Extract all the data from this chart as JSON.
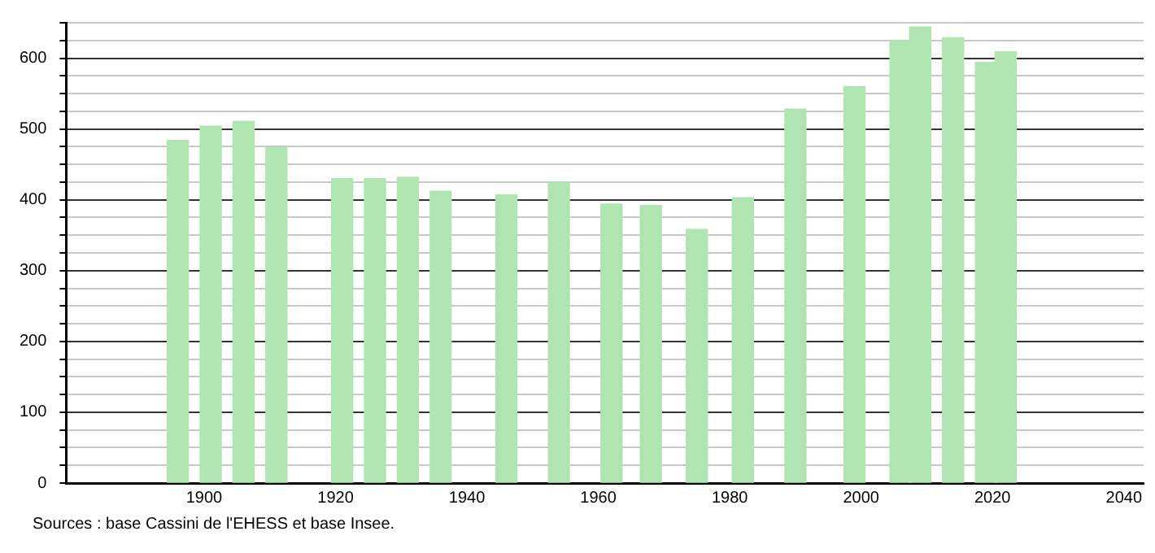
{
  "chart_data": {
    "type": "bar",
    "color": "#b0e4b0",
    "x": [
      1896,
      1901,
      1906,
      1911,
      1921,
      1926,
      1931,
      1936,
      1946,
      1954,
      1962,
      1968,
      1975,
      1982,
      1990,
      1999,
      2006,
      2009,
      2014,
      2019,
      2022
    ],
    "values": [
      484,
      504,
      511,
      474,
      430,
      430,
      432,
      412,
      407,
      425,
      394,
      392,
      358,
      403,
      528,
      560,
      625,
      644,
      629,
      594,
      609
    ],
    "xlim": [
      1879,
      2043
    ],
    "xticks": [
      1900,
      1920,
      1940,
      1960,
      1980,
      2000,
      2020,
      2040
    ],
    "ylim": [
      0,
      650
    ],
    "yticks": [
      0,
      {
        "value": 25,
        "label": null
      },
      {
        "value": 50,
        "label": null
      },
      {
        "value": 75,
        "label": null
      },
      100,
      {
        "value": 125,
        "label": null
      },
      {
        "value": 150,
        "label": null
      },
      {
        "value": 175,
        "label": null
      },
      200,
      {
        "value": 225,
        "label": null
      },
      {
        "value": 250,
        "label": null
      },
      {
        "value": 275,
        "label": null
      },
      300,
      {
        "value": 325,
        "label": null
      },
      {
        "value": 350,
        "label": null
      },
      {
        "value": 375,
        "label": null
      },
      400,
      {
        "value": 425,
        "label": null
      },
      {
        "value": 450,
        "label": null
      },
      {
        "value": 475,
        "label": null
      },
      500,
      {
        "value": 525,
        "label": null
      },
      {
        "value": 550,
        "label": null
      },
      {
        "value": 575,
        "label": null
      },
      600,
      {
        "value": 625,
        "label": null
      },
      {
        "value": 650,
        "label": null
      }
    ],
    "grid": "y",
    "legend": false,
    "annotations": [
      "Sources : base Cassini de l'EHESS et base Insee."
    ]
  }
}
